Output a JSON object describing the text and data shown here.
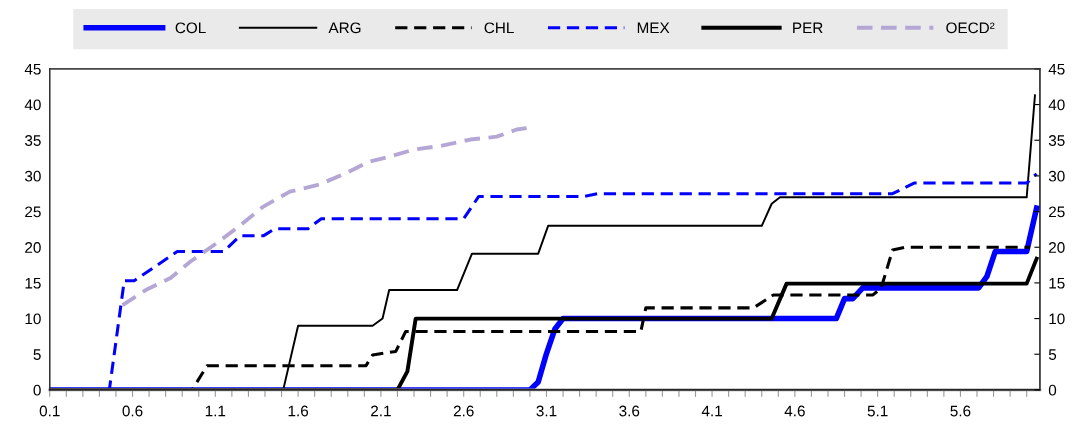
{
  "chart_data": {
    "type": "line",
    "xlim": [
      0.1,
      6.08
    ],
    "xticks": [
      {
        "value": 0.1,
        "label": "0.1"
      },
      {
        "value": 0.2,
        "label": null
      },
      {
        "value": 0.3,
        "label": null
      },
      {
        "value": 0.4,
        "label": null
      },
      {
        "value": 0.5,
        "label": null
      },
      {
        "value": 0.6,
        "label": "0.6"
      },
      {
        "value": 0.7,
        "label": null
      },
      {
        "value": 0.8,
        "label": null
      },
      {
        "value": 0.9,
        "label": null
      },
      {
        "value": 1.0,
        "label": null
      },
      {
        "value": 1.1,
        "label": "1.1"
      },
      {
        "value": 1.2,
        "label": null
      },
      {
        "value": 1.3,
        "label": null
      },
      {
        "value": 1.4,
        "label": null
      },
      {
        "value": 1.5,
        "label": null
      },
      {
        "value": 1.6,
        "label": "1.6"
      },
      {
        "value": 1.7,
        "label": null
      },
      {
        "value": 1.8,
        "label": null
      },
      {
        "value": 1.9,
        "label": null
      },
      {
        "value": 2.0,
        "label": null
      },
      {
        "value": 2.1,
        "label": "2.1"
      },
      {
        "value": 2.2,
        "label": null
      },
      {
        "value": 2.3,
        "label": null
      },
      {
        "value": 2.4,
        "label": null
      },
      {
        "value": 2.5,
        "label": null
      },
      {
        "value": 2.6,
        "label": "2.6"
      },
      {
        "value": 2.7,
        "label": null
      },
      {
        "value": 2.8,
        "label": null
      },
      {
        "value": 2.9,
        "label": null
      },
      {
        "value": 3.0,
        "label": null
      },
      {
        "value": 3.1,
        "label": "3.1"
      },
      {
        "value": 3.2,
        "label": null
      },
      {
        "value": 3.3,
        "label": null
      },
      {
        "value": 3.4,
        "label": null
      },
      {
        "value": 3.5,
        "label": null
      },
      {
        "value": 3.6,
        "label": "3.6"
      },
      {
        "value": 3.7,
        "label": null
      },
      {
        "value": 3.8,
        "label": null
      },
      {
        "value": 3.9,
        "label": null
      },
      {
        "value": 4.0,
        "label": null
      },
      {
        "value": 4.1,
        "label": "4.1"
      },
      {
        "value": 4.2,
        "label": null
      },
      {
        "value": 4.3,
        "label": null
      },
      {
        "value": 4.4,
        "label": null
      },
      {
        "value": 4.5,
        "label": null
      },
      {
        "value": 4.6,
        "label": "4.6"
      },
      {
        "value": 4.7,
        "label": null
      },
      {
        "value": 4.8,
        "label": null
      },
      {
        "value": 4.9,
        "label": null
      },
      {
        "value": 5.0,
        "label": null
      },
      {
        "value": 5.1,
        "label": "5.1"
      },
      {
        "value": 5.2,
        "label": null
      },
      {
        "value": 5.3,
        "label": null
      },
      {
        "value": 5.4,
        "label": null
      },
      {
        "value": 5.5,
        "label": null
      },
      {
        "value": 5.6,
        "label": "5.6"
      },
      {
        "value": 5.7,
        "label": null
      },
      {
        "value": 5.8,
        "label": null
      },
      {
        "value": 5.9,
        "label": null
      },
      {
        "value": 6.0,
        "label": null
      }
    ],
    "ylim": [
      0,
      45
    ],
    "yticks": [
      0,
      5,
      10,
      15,
      20,
      25,
      30,
      35,
      40,
      45
    ],
    "y2lim": [
      0,
      45
    ],
    "y2ticks": [
      0,
      5,
      10,
      15,
      20,
      25,
      30,
      35,
      40,
      45
    ],
    "grid": false,
    "legend": "top",
    "marker": "none",
    "series": [
      {
        "name": "COL",
        "color": "#0000ff",
        "line_style": "solid",
        "x": [
          0.1,
          3.0,
          3.05,
          3.1,
          3.15,
          3.2,
          4.85,
          4.9,
          4.95,
          5.01,
          5.71,
          5.76,
          5.81,
          6.0,
          6.06
        ],
        "values": [
          0,
          0,
          1.1,
          5.1,
          8.5,
          10.0,
          10.0,
          12.8,
          12.8,
          14.3,
          14.3,
          15.9,
          19.4,
          19.4,
          25.5
        ]
      },
      {
        "name": "ARG",
        "color": "#000000",
        "line_style": "solid",
        "x": [
          0.1,
          1.51,
          1.6,
          2.05,
          2.11,
          2.15,
          2.56,
          2.65,
          3.05,
          3.11,
          4.4,
          4.46,
          4.51,
          6.0,
          6.05
        ],
        "values": [
          0,
          0,
          9.0,
          9.0,
          10.0,
          14.0,
          14.0,
          19.1,
          19.1,
          23.0,
          23.0,
          26.1,
          27.0,
          27.0,
          41.3
        ]
      },
      {
        "name": "CHL",
        "color": "#000000",
        "line_style": "dashed",
        "x": [
          0.1,
          0.96,
          1.05,
          2.01,
          2.05,
          2.19,
          2.25,
          3.67,
          3.7,
          4.35,
          4.47,
          5.07,
          5.12,
          5.19,
          5.27,
          6.02
        ],
        "values": [
          0,
          0,
          3.4,
          3.4,
          4.9,
          5.4,
          8.2,
          8.2,
          11.5,
          11.5,
          13.3,
          13.3,
          14.2,
          19.6,
          20.0,
          20.0
        ]
      },
      {
        "name": "MEX",
        "color": "#0000ff",
        "line_style": "dashed",
        "x": [
          0.1,
          0.46,
          0.55,
          0.61,
          0.87,
          1.15,
          1.25,
          1.39,
          1.46,
          1.66,
          1.74,
          2.6,
          2.69,
          3.32,
          3.41,
          5.19,
          5.32,
          6.0,
          6.06
        ],
        "values": [
          0,
          0,
          15.3,
          15.3,
          19.4,
          19.4,
          21.6,
          21.6,
          22.6,
          22.6,
          24.0,
          24.0,
          27.1,
          27.1,
          27.5,
          27.5,
          29.0,
          29.0,
          30.3
        ]
      },
      {
        "name": "PER",
        "color": "#000000",
        "line_style": "solid",
        "x": [
          0.1,
          2.2,
          2.26,
          2.31,
          4.46,
          4.55,
          6.0,
          6.06
        ],
        "values": [
          0,
          0,
          2.6,
          10.0,
          10.0,
          14.9,
          14.9,
          18.4
        ]
      },
      {
        "name": "OECD²",
        "color": "#b4a7d6",
        "line_style": "dashed",
        "x": [
          0.54,
          0.68,
          0.83,
          0.95,
          1.11,
          1.23,
          1.39,
          1.55,
          1.73,
          1.89,
          2.03,
          2.15,
          2.3,
          2.46,
          2.64,
          2.8,
          2.92,
          2.98
        ],
        "values": [
          11.9,
          14.0,
          15.7,
          18.0,
          20.6,
          22.7,
          25.7,
          27.8,
          28.8,
          30.4,
          32.0,
          32.7,
          33.7,
          34.2,
          35.1,
          35.5,
          36.5,
          36.7
        ]
      }
    ]
  }
}
